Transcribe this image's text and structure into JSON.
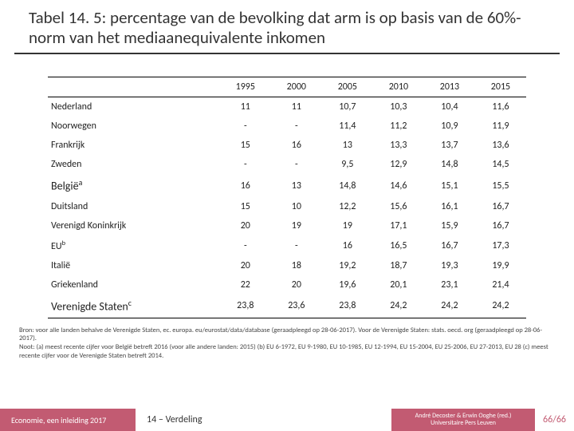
{
  "title": "Tabel 14. 5: percentage van de bevolking dat arm is op basis van de 60%-norm van het mediaanequivalente inkomen",
  "table": {
    "columns": [
      "",
      "1995",
      "2000",
      "2005",
      "2010",
      "2013",
      "2015"
    ],
    "rows": [
      {
        "label": "Nederland",
        "cells": [
          "11",
          "11",
          "10,7",
          "10,3",
          "10,4",
          "11,6"
        ],
        "big": false
      },
      {
        "label": "Noorwegen",
        "cells": [
          "-",
          "-",
          "11,4",
          "11,2",
          "10,9",
          "11,9"
        ],
        "big": false
      },
      {
        "label": "Frankrijk",
        "cells": [
          "15",
          "16",
          "13",
          "13,3",
          "13,7",
          "13,6"
        ],
        "big": false
      },
      {
        "label": "Zweden",
        "cells": [
          "-",
          "-",
          "9,5",
          "12,9",
          "14,8",
          "14,5"
        ],
        "big": false
      },
      {
        "label": "België",
        "sup": "a",
        "cells": [
          "16",
          "13",
          "14,8",
          "14,6",
          "15,1",
          "15,5"
        ],
        "big": true
      },
      {
        "label": "Duitsland",
        "cells": [
          "15",
          "10",
          "12,2",
          "15,6",
          "16,1",
          "16,7"
        ],
        "big": false
      },
      {
        "label": "Verenigd Koninkrijk",
        "cells": [
          "20",
          "19",
          "19",
          "17,1",
          "15,9",
          "16,7"
        ],
        "big": false
      },
      {
        "label": "EU",
        "sup": "b",
        "cells": [
          "-",
          "-",
          "16",
          "16,5",
          "16,7",
          "17,3"
        ],
        "big": false
      },
      {
        "label": "Italië",
        "cells": [
          "20",
          "18",
          "19,2",
          "18,7",
          "19,3",
          "19,9"
        ],
        "big": false
      },
      {
        "label": "Griekenland",
        "cells": [
          "22",
          "20",
          "19,6",
          "20,1",
          "23,1",
          "21,4"
        ],
        "big": false
      },
      {
        "label": "Verenigde Staten",
        "sup": "c",
        "cells": [
          "23,8",
          "23,6",
          "23,8",
          "24,2",
          "24,2",
          "24,2"
        ],
        "big": true
      }
    ]
  },
  "notes_line1": "Bron: voor alle landen behalve de Verenigde Staten, ec. europa. eu/eurostat/data/database (geraadpleegd op 28-06-2017). Voor de Verenigde Staten: stats. oecd. org (geraadpleegd op 28-06-2017).",
  "notes_line2": "Noot: (a) meest recente cijfer voor België betreft 2016 (voor alle andere landen: 2015) (b) EU 6-1972, EU 9-1980, EU 10-1985, EU 12-1994, EU 15-2004, EU 25-2006, EU 27-2013, EU 28 (c) meest recente cijfer voor de Verenigde Staten betreft 2014.",
  "footer": {
    "left": "Economie, een inleiding 2017",
    "mid": "14 – Verdeling",
    "right1": "André Decoster & Erwin Ooghe (red.)",
    "right2": "Universitaire Pers Leuven",
    "page": "66/66"
  },
  "colors": {
    "brand": "#c25b72"
  }
}
